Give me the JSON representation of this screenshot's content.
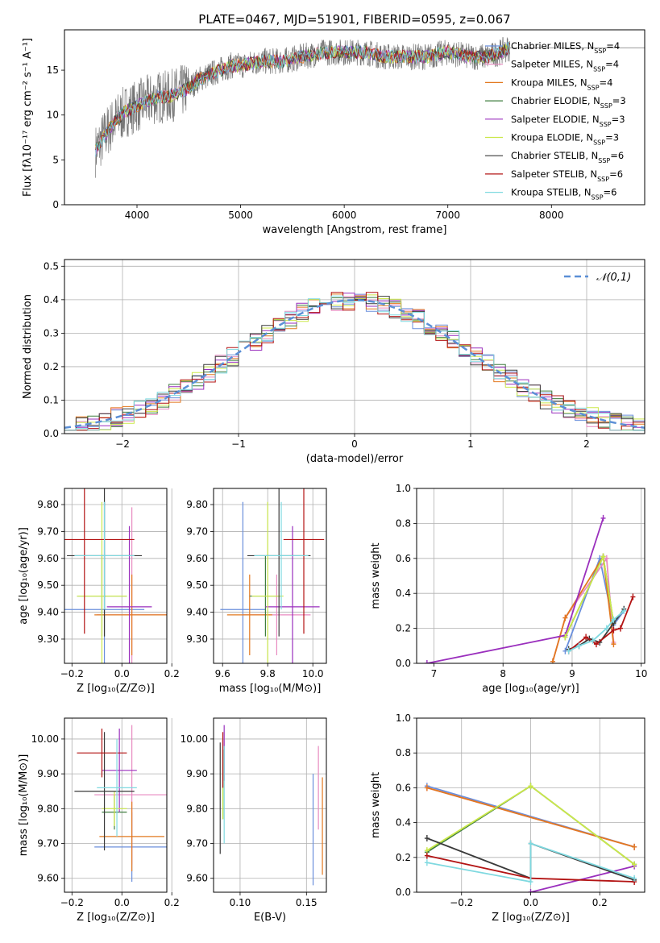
{
  "figure_title": "PLATE=0467, MJD=51901, FIBERID=0595, z=0.067",
  "models": [
    {
      "name": "Chabrier MILES",
      "nssp": "4",
      "color": "#6a8fdc"
    },
    {
      "name": "Salpeter MILES",
      "nssp": "4",
      "color": "#e88ac0"
    },
    {
      "name": "Kroupa MILES",
      "nssp": "4",
      "color": "#e2781f"
    },
    {
      "name": "Chabrier ELODIE",
      "nssp": "3",
      "color": "#3f7d3f"
    },
    {
      "name": "Salpeter ELODIE",
      "nssp": "3",
      "color": "#9a2fbd"
    },
    {
      "name": "Kroupa ELODIE",
      "nssp": "3",
      "color": "#cbe84a"
    },
    {
      "name": "Chabrier STELIB",
      "nssp": "6",
      "color": "#3a3a3a"
    },
    {
      "name": "Salpeter STELIB",
      "nssp": "6",
      "color": "#b31414"
    },
    {
      "name": "Kroupa STELIB",
      "nssp": "6",
      "color": "#7fd9e0"
    }
  ],
  "chart_data": [
    {
      "id": "spectrum",
      "type": "line",
      "xlabel": "wavelength [Angstrom, rest frame]",
      "ylabel": "Flux [fλ10⁻¹⁷ erg cm⁻² s⁻¹ A⁻¹]",
      "xlim": [
        3300,
        8900
      ],
      "ylim": [
        0,
        19.5
      ],
      "xticks": [
        4000,
        5000,
        6000,
        7000,
        8000
      ],
      "yticks": [
        0,
        5,
        10,
        15
      ],
      "legend": "right",
      "continuum": {
        "x": [
          3600,
          3700,
          3800,
          3900,
          4000,
          4100,
          4200,
          4300,
          4400,
          4500,
          4600,
          4700,
          4800,
          4900,
          5000,
          5200,
          5400,
          5600,
          5800,
          6000,
          6200,
          6400,
          6600,
          6800,
          7000,
          7200,
          7400,
          7600
        ],
        "y": [
          6,
          8,
          9.5,
          10.5,
          11,
          11.5,
          12,
          12,
          12.5,
          13,
          14,
          14.5,
          15,
          15.5,
          15.5,
          16,
          16,
          16.5,
          17,
          17,
          17,
          16.5,
          16.5,
          16.5,
          17,
          16.5,
          16.5,
          17.5
        ]
      },
      "data_extended_x": [
        7600,
        8900
      ],
      "data_extended_y": [
        17.5,
        17.5
      ]
    },
    {
      "id": "residuals",
      "type": "line",
      "xlabel": "(data-model)/error",
      "ylabel": "Normed distribution",
      "xlim": [
        -2.5,
        2.5
      ],
      "ylim": [
        0,
        0.52
      ],
      "xticks": [
        -2,
        -1,
        0,
        1,
        2
      ],
      "yticks": [
        0,
        0.1,
        0.2,
        0.3,
        0.4,
        0.5
      ],
      "reference_label": "𝒩(0,1)",
      "reference_color": "#5b8fd6",
      "legend": "top-right",
      "grid": true
    },
    {
      "id": "age_vs_Z",
      "type": "scatter",
      "xlabel": "Z [log₁₀(Z/Z⊙)]",
      "ylabel": "age  [log₁₀(age/yr)]",
      "xlim": [
        -0.23,
        0.18
      ],
      "ylim": [
        9.21,
        9.86
      ],
      "xticks": [
        -0.2,
        0.0,
        0.2
      ],
      "yticks": [
        9.3,
        9.4,
        9.5,
        9.6,
        9.7,
        9.8
      ],
      "points": [
        {
          "model": 0,
          "x": -0.07,
          "y": 9.41,
          "xerr": [
            0.16,
            0.16
          ],
          "yerr": [
            0.4,
            0.4
          ]
        },
        {
          "model": 1,
          "x": 0.04,
          "y": 9.39,
          "xerr": [
            0.14,
            0.14
          ],
          "yerr": [
            0.4,
            0.4
          ]
        },
        {
          "model": 2,
          "x": 0.04,
          "y": 9.39,
          "xerr": [
            0.15,
            0.15
          ],
          "yerr": [
            0.15,
            0.15
          ]
        },
        {
          "model": 3,
          "x": -0.08,
          "y": 9.46,
          "xerr": [
            0.1,
            0.1
          ],
          "yerr": [
            0.15,
            0.15
          ]
        },
        {
          "model": 4,
          "x": 0.03,
          "y": 9.42,
          "xerr": [
            0.09,
            0.09
          ],
          "yerr": [
            0.3,
            0.3
          ]
        },
        {
          "model": 5,
          "x": -0.08,
          "y": 9.46,
          "xerr": [
            0.1,
            0.1
          ],
          "yerr": [
            0.35,
            0.35
          ]
        },
        {
          "model": 6,
          "x": -0.07,
          "y": 9.61,
          "xerr": [
            0.15,
            0.15
          ],
          "yerr": [
            0.3,
            0.3
          ]
        },
        {
          "model": 7,
          "x": -0.15,
          "y": 9.67,
          "xerr": [
            0.2,
            0.2
          ],
          "yerr": [
            0.35,
            0.35
          ]
        },
        {
          "model": 8,
          "x": -0.07,
          "y": 9.61,
          "xerr": [
            0.12,
            0.12
          ],
          "yerr": [
            0.2,
            0.2
          ]
        }
      ]
    },
    {
      "id": "age_vs_mass",
      "type": "scatter",
      "xlabel": "mass [log₁₀(M/M⊙)]",
      "ylabel": "",
      "xlim": [
        9.56,
        10.06
      ],
      "ylim": [
        9.21,
        9.86
      ],
      "xticks": [
        9.6,
        9.8,
        10.0
      ],
      "yticks": [
        9.3,
        9.4,
        9.5,
        9.6,
        9.7,
        9.8
      ],
      "points": [
        {
          "model": 0,
          "x": 9.69,
          "y": 9.41,
          "xerr": [
            0.1,
            0.1
          ],
          "yerr": [
            0.4,
            0.4
          ]
        },
        {
          "model": 1,
          "x": 9.84,
          "y": 9.39,
          "xerr": [
            0.15,
            0.15
          ],
          "yerr": [
            0.15,
            0.15
          ]
        },
        {
          "model": 2,
          "x": 9.72,
          "y": 9.39,
          "xerr": [
            0.1,
            0.1
          ],
          "yerr": [
            0.15,
            0.15
          ]
        },
        {
          "model": 3,
          "x": 9.79,
          "y": 9.46,
          "xerr": [
            0.07,
            0.07
          ],
          "yerr": [
            0.15,
            0.15
          ]
        },
        {
          "model": 4,
          "x": 9.91,
          "y": 9.42,
          "xerr": [
            0.12,
            0.12
          ],
          "yerr": [
            0.3,
            0.3
          ]
        },
        {
          "model": 5,
          "x": 9.8,
          "y": 9.46,
          "xerr": [
            0.07,
            0.07
          ],
          "yerr": [
            0.35,
            0.35
          ]
        },
        {
          "model": 6,
          "x": 9.85,
          "y": 9.61,
          "xerr": [
            0.14,
            0.14
          ],
          "yerr": [
            0.3,
            0.3
          ]
        },
        {
          "model": 7,
          "x": 9.96,
          "y": 9.67,
          "xerr": [
            0.09,
            0.09
          ],
          "yerr": [
            0.35,
            0.35
          ]
        },
        {
          "model": 8,
          "x": 9.86,
          "y": 9.61,
          "xerr": [
            0.12,
            0.12
          ],
          "yerr": [
            0.2,
            0.2
          ]
        }
      ]
    },
    {
      "id": "weight_vs_age",
      "type": "line",
      "xlabel": "age  [log₁₀(age/yr)]",
      "ylabel": "mass weight",
      "xlim": [
        6.75,
        10.05
      ],
      "ylim": [
        0,
        1
      ],
      "xticks": [
        7,
        8,
        9,
        10
      ],
      "yticks": [
        0,
        0.2,
        0.4,
        0.6,
        0.8,
        1.0
      ],
      "series": [
        {
          "model": 0,
          "x": [
            8.9,
            9.4,
            9.6,
            9.75
          ],
          "y": [
            0.07,
            0.6,
            0.22,
            0.3
          ]
        },
        {
          "model": 1,
          "x": [
            8.72,
            8.9,
            9.5,
            9.6
          ],
          "y": [
            0.01,
            0.26,
            0.6,
            0.12
          ]
        },
        {
          "model": 2,
          "x": [
            8.72,
            8.9,
            9.45,
            9.6
          ],
          "y": [
            0.01,
            0.26,
            0.61,
            0.11
          ]
        },
        {
          "model": 3,
          "x": [
            8.9,
            9.45,
            9.6
          ],
          "y": [
            0.15,
            0.61,
            0.23
          ]
        },
        {
          "model": 4,
          "x": [
            6.9,
            8.9,
            9.45
          ],
          "y": [
            0.0,
            0.16,
            0.83
          ]
        },
        {
          "model": 5,
          "x": [
            8.9,
            9.45,
            9.6
          ],
          "y": [
            0.15,
            0.61,
            0.23
          ]
        },
        {
          "model": 6,
          "x": [
            8.95,
            9.1,
            9.25,
            9.4,
            9.6,
            9.75
          ],
          "y": [
            0.08,
            0.1,
            0.14,
            0.12,
            0.23,
            0.31
          ]
        },
        {
          "model": 7,
          "x": [
            8.95,
            9.2,
            9.35,
            9.6,
            9.7,
            9.88
          ],
          "y": [
            0.07,
            0.15,
            0.11,
            0.19,
            0.2,
            0.38
          ]
        },
        {
          "model": 8,
          "x": [
            8.95,
            9.1,
            9.3,
            9.5,
            9.6,
            9.75
          ],
          "y": [
            0.07,
            0.1,
            0.13,
            0.2,
            0.25,
            0.3
          ]
        }
      ]
    },
    {
      "id": "mass_vs_Z",
      "type": "scatter",
      "xlabel": "Z [log₁₀(Z/Z⊙)]",
      "ylabel": "mass [log₁₀(M/M⊙)]",
      "xlim": [
        -0.23,
        0.18
      ],
      "ylim": [
        9.56,
        10.06
      ],
      "xticks": [
        -0.2,
        0.0,
        0.2
      ],
      "yticks": [
        9.6,
        9.7,
        9.8,
        9.9,
        10.0
      ],
      "points": [
        {
          "model": 0,
          "x": 0.04,
          "y": 9.69,
          "xerr": [
            0.15,
            0.15
          ],
          "yerr": [
            0.1,
            0.1
          ]
        },
        {
          "model": 1,
          "x": 0.04,
          "y": 9.84,
          "xerr": [
            0.15,
            0.15
          ],
          "yerr": [
            0.2,
            0.2
          ]
        },
        {
          "model": 2,
          "x": 0.04,
          "y": 9.72,
          "xerr": [
            0.13,
            0.13
          ],
          "yerr": [
            0.1,
            0.1
          ]
        },
        {
          "model": 3,
          "x": -0.03,
          "y": 9.79,
          "xerr": [
            0.05,
            0.05
          ],
          "yerr": [
            0.05,
            0.05
          ]
        },
        {
          "model": 4,
          "x": -0.01,
          "y": 9.91,
          "xerr": [
            0.07,
            0.07
          ],
          "yerr": [
            0.12,
            0.12
          ]
        },
        {
          "model": 5,
          "x": -0.03,
          "y": 9.8,
          "xerr": [
            0.05,
            0.05
          ],
          "yerr": [
            0.05,
            0.05
          ]
        },
        {
          "model": 6,
          "x": -0.07,
          "y": 9.85,
          "xerr": [
            0.12,
            0.12
          ],
          "yerr": [
            0.17,
            0.17
          ]
        },
        {
          "model": 7,
          "x": -0.08,
          "y": 9.96,
          "xerr": [
            0.1,
            0.1
          ],
          "yerr": [
            0.07,
            0.07
          ]
        },
        {
          "model": 8,
          "x": -0.02,
          "y": 9.86,
          "xerr": [
            0.08,
            0.08
          ],
          "yerr": [
            0.14,
            0.14
          ]
        }
      ]
    },
    {
      "id": "mass_vs_ebv",
      "type": "scatter",
      "xlabel": "E(B-V)",
      "ylabel": "",
      "xlim": [
        0.08,
        0.165
      ],
      "ylim": [
        9.56,
        10.06
      ],
      "xticks": [
        0.1,
        0.15
      ],
      "yticks": [
        9.6,
        9.7,
        9.8,
        9.9,
        10.0
      ],
      "points": [
        {
          "model": 0,
          "x": 0.155,
          "y": 9.74,
          "yerr": [
            0.16,
            0.16
          ]
        },
        {
          "model": 1,
          "x": 0.159,
          "y": 9.86,
          "yerr": [
            0.12,
            0.12
          ]
        },
        {
          "model": 2,
          "x": 0.162,
          "y": 9.75,
          "yerr": [
            0.14,
            0.14
          ]
        },
        {
          "model": 3,
          "x": 0.087,
          "y": 9.87,
          "yerr": [
            0.1,
            0.1
          ]
        },
        {
          "model": 4,
          "x": 0.088,
          "y": 9.96,
          "yerr": [
            0.08,
            0.08
          ]
        },
        {
          "model": 5,
          "x": 0.087,
          "y": 9.87,
          "yerr": [
            0.1,
            0.1
          ]
        },
        {
          "model": 6,
          "x": 0.085,
          "y": 9.83,
          "yerr": [
            0.16,
            0.16
          ]
        },
        {
          "model": 7,
          "x": 0.087,
          "y": 9.94,
          "yerr": [
            0.08,
            0.08
          ]
        },
        {
          "model": 8,
          "x": 0.088,
          "y": 9.84,
          "yerr": [
            0.14,
            0.14
          ]
        }
      ]
    },
    {
      "id": "weight_vs_Z",
      "type": "line",
      "xlabel": "Z [log₁₀(Z/Z⊙)]",
      "ylabel": "mass weight",
      "xlim": [
        -0.33,
        0.33
      ],
      "ylim": [
        0,
        1
      ],
      "xticks": [
        -0.2,
        0.0,
        0.2
      ],
      "yticks": [
        0,
        0.2,
        0.4,
        0.6,
        0.8,
        1.0
      ],
      "series": [
        {
          "model": 0,
          "x": [
            -0.3,
            0.3
          ],
          "y": [
            0.61,
            0.26
          ]
        },
        {
          "model": 1,
          "x": [
            -0.3,
            0.3
          ],
          "y": [
            0.6,
            0.26
          ]
        },
        {
          "model": 2,
          "x": [
            -0.3,
            0.3
          ],
          "y": [
            0.6,
            0.26
          ]
        },
        {
          "model": 3,
          "x": [
            -0.3,
            0.0,
            0.3
          ],
          "y": [
            0.23,
            0.61,
            0.16
          ]
        },
        {
          "model": 4,
          "x": [
            0.0,
            0.3
          ],
          "y": [
            0.0,
            0.15
          ]
        },
        {
          "model": 5,
          "x": [
            -0.3,
            0.0,
            0.3
          ],
          "y": [
            0.24,
            0.61,
            0.16
          ]
        },
        {
          "model": 6,
          "x": [
            -0.3,
            0.0,
            0.0,
            0.3
          ],
          "y": [
            0.31,
            0.08,
            0.28,
            0.07
          ]
        },
        {
          "model": 7,
          "x": [
            -0.3,
            0.0,
            0.3
          ],
          "y": [
            0.21,
            0.08,
            0.06
          ]
        },
        {
          "model": 8,
          "x": [
            -0.3,
            0.0,
            0.0,
            0.3
          ],
          "y": [
            0.17,
            0.06,
            0.28,
            0.08
          ]
        }
      ]
    }
  ]
}
